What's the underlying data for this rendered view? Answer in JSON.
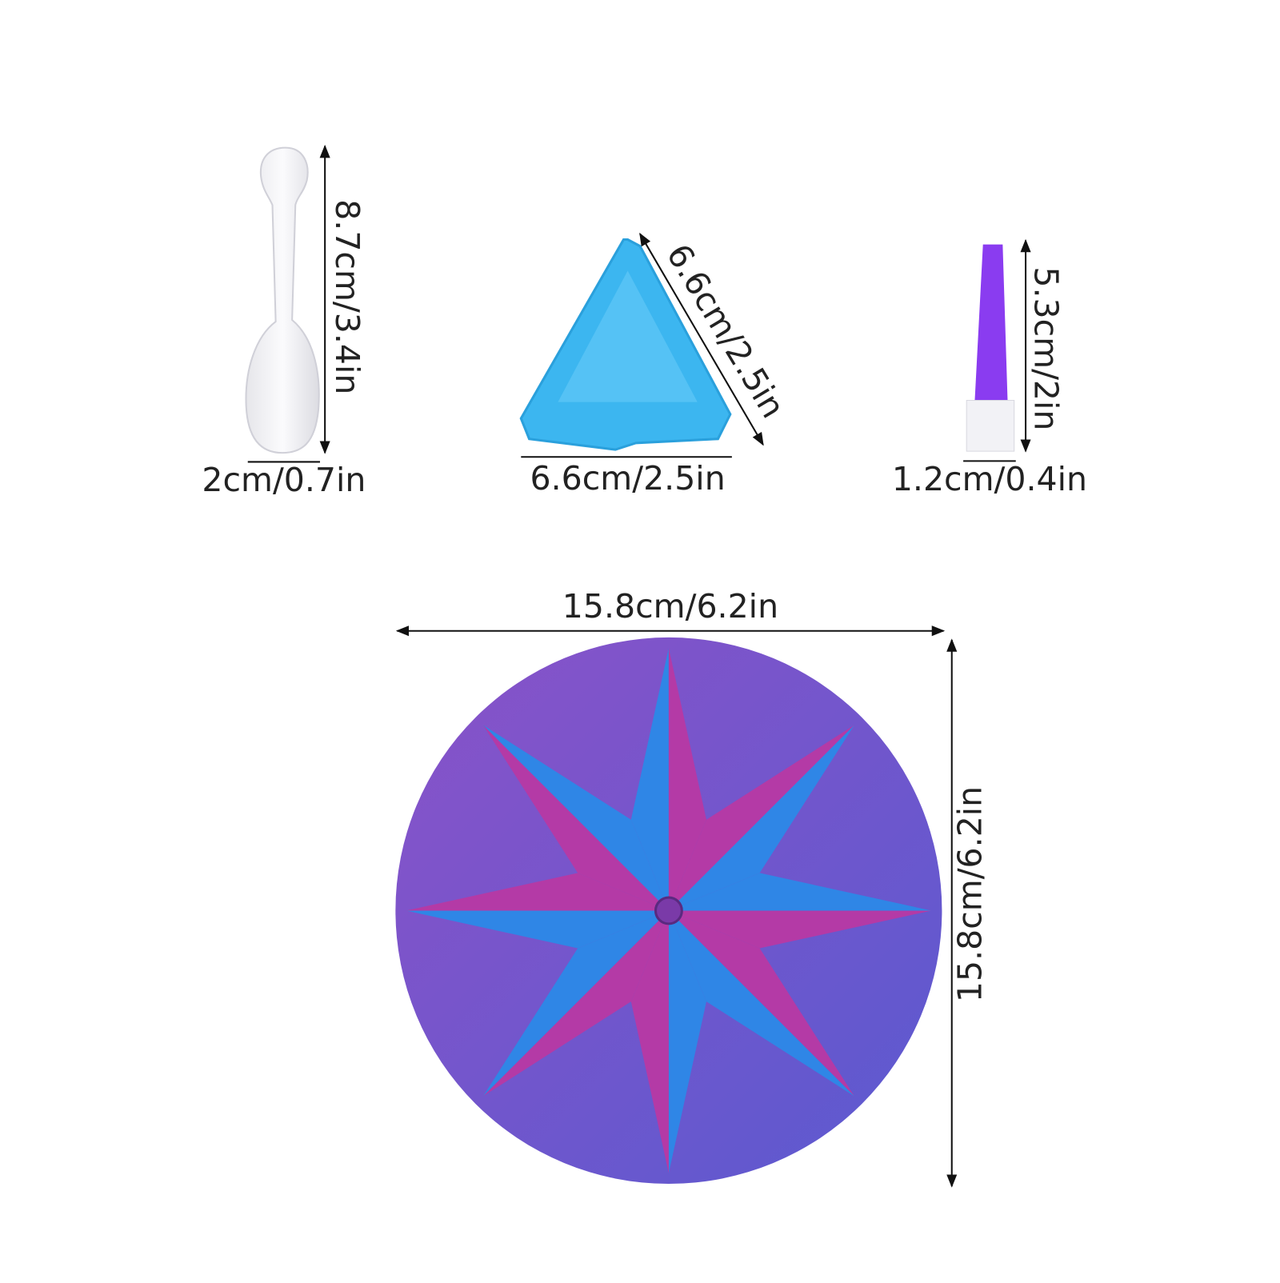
{
  "spoon": {
    "height": "8.7cm/3.4in",
    "width": "2cm/0.7in"
  },
  "tray": {
    "side": "6.6cm/2.5in",
    "width": "6.6cm/2.5in"
  },
  "brush": {
    "height": "5.3cm/2in",
    "width": "1.2cm/0.4in"
  },
  "plate": {
    "width": "15.8cm/6.2in",
    "height": "15.8cm/6.2in"
  }
}
